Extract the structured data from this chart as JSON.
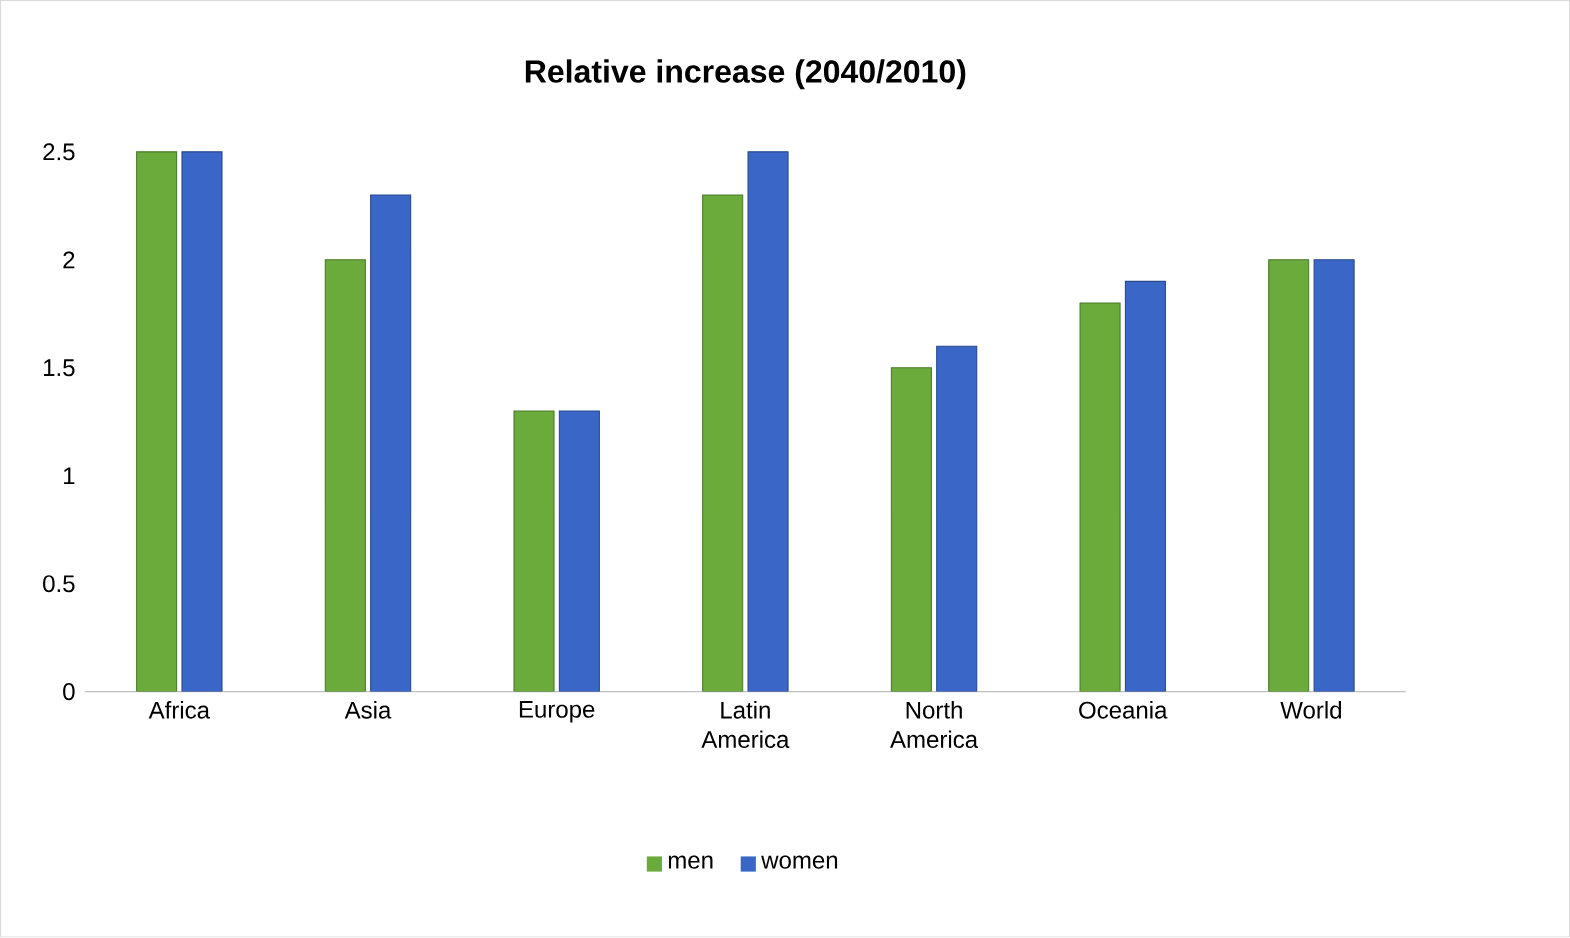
{
  "chart_data": {
    "type": "bar",
    "title": "Relative increase (2040/2010)",
    "categories": [
      "Africa",
      "Asia",
      "Europe",
      "Latin America",
      "North America",
      "Oceania",
      "World"
    ],
    "series": [
      {
        "name": "men",
        "color": "#6aab3c",
        "values": [
          2.5,
          2.0,
          1.3,
          2.3,
          1.5,
          1.8,
          2.0
        ]
      },
      {
        "name": "women",
        "color": "#3a66c8",
        "values": [
          2.5,
          2.3,
          1.3,
          2.5,
          1.6,
          1.9,
          2.0
        ]
      }
    ],
    "ylim": [
      0,
      2.5
    ],
    "yticks": [
      0,
      0.5,
      1,
      1.5,
      2,
      2.5
    ],
    "legend": "bottom"
  }
}
